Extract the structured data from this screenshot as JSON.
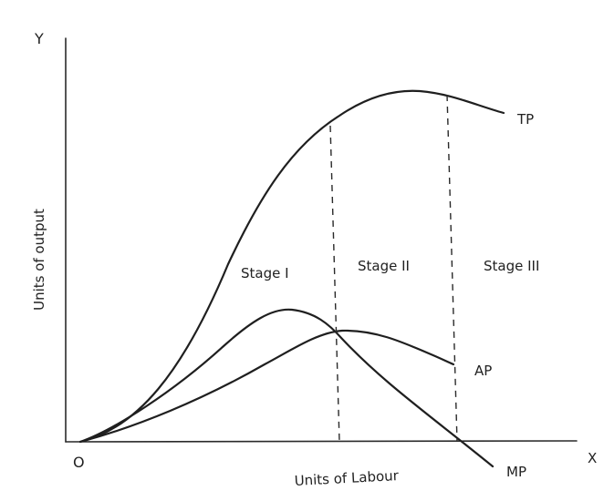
{
  "axes": {
    "y_axis_label": "Units of output",
    "x_axis_label": "Units of Labour",
    "y_end": "Y",
    "x_end": "X",
    "origin": "O"
  },
  "curves": {
    "tp": "TP",
    "ap": "AP",
    "mp": "MP"
  },
  "stages": {
    "stage_1": "Stage I",
    "stage_2": "Stage II",
    "stage_3": "Stage III"
  }
}
